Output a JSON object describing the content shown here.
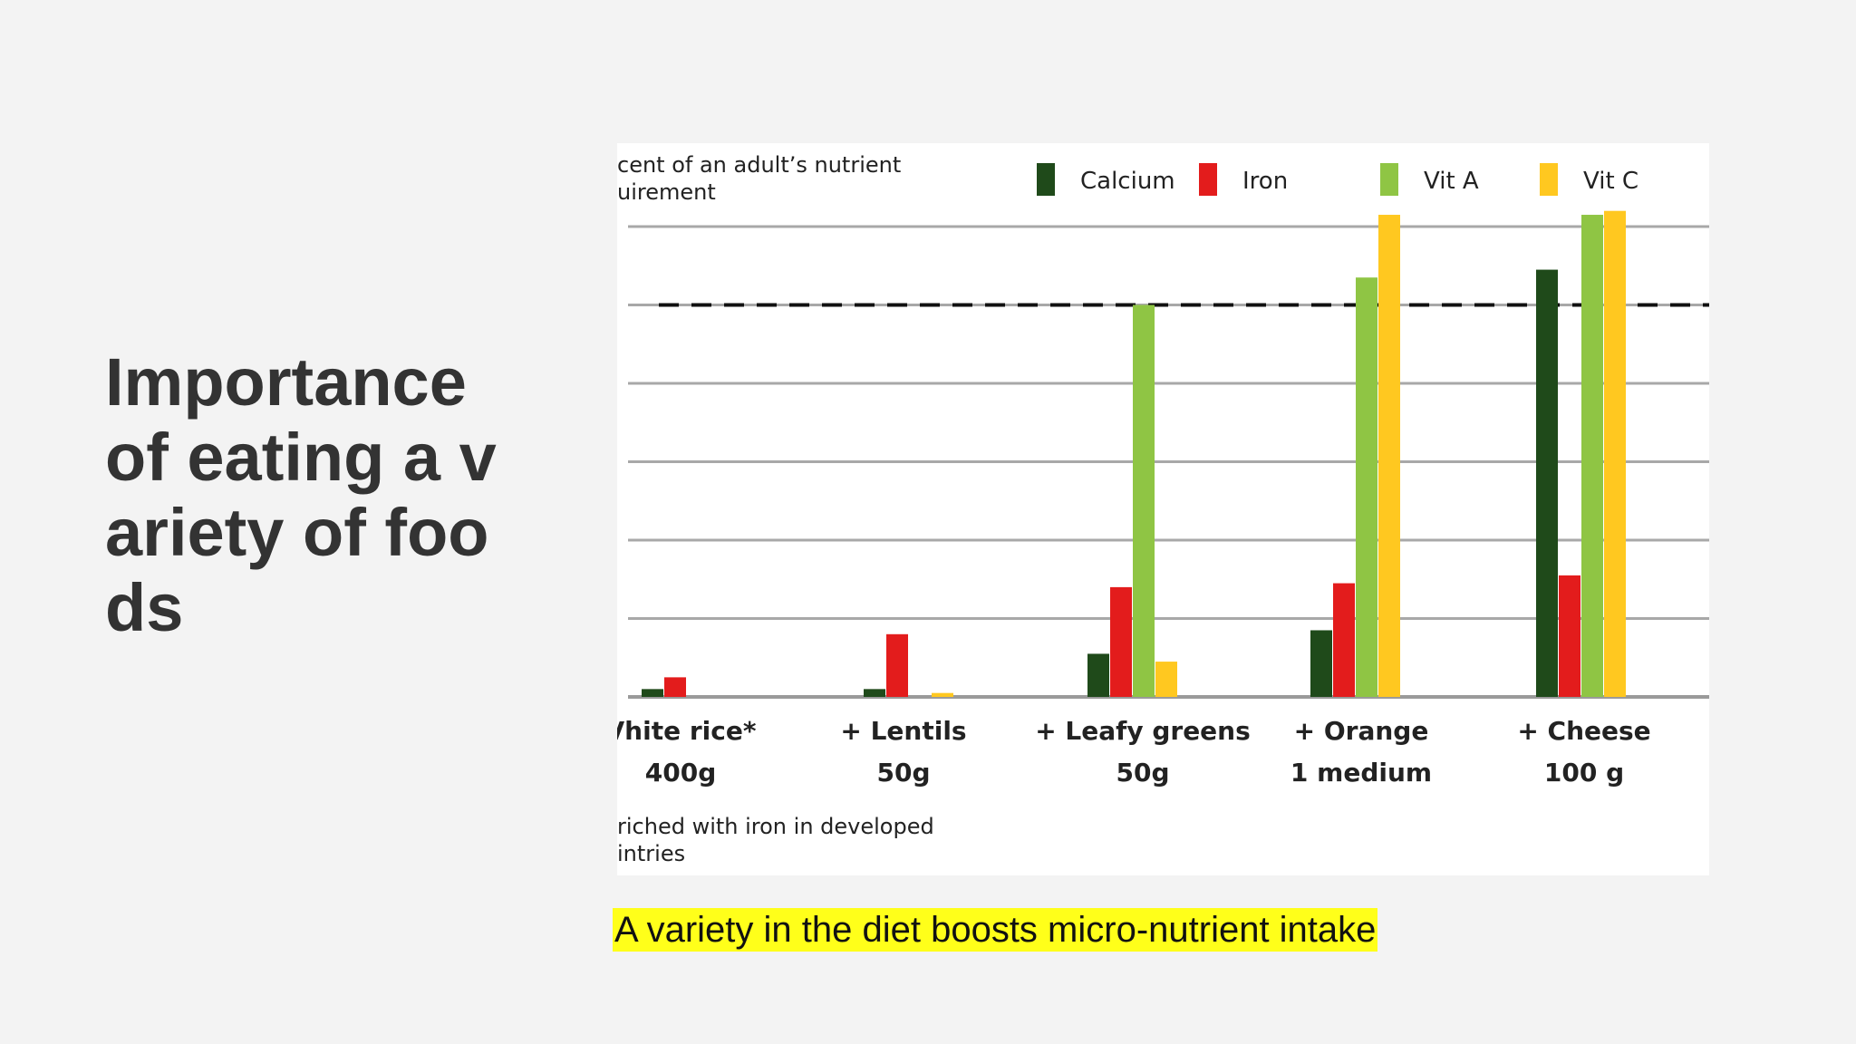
{
  "slide": {
    "title": "Importance of eating a variety of foods",
    "caption": "A variety in the diet boosts micro-nutrient intake"
  },
  "colors": {
    "background": "#f3f3f3",
    "calcium": "#1f4a1a",
    "iron": "#e31c1c",
    "vit_a": "#8fc544",
    "vit_c": "#ffc820",
    "caption_highlight": "#ffff1a"
  },
  "chart_data": {
    "type": "bar",
    "title": "",
    "ylabel": [
      "cent of an adult’s nutrient",
      "uirement"
    ],
    "note": [
      "riched with iron in developed",
      "intries"
    ],
    "ylim": [
      0,
      1.2
    ],
    "reference_line": 1.0,
    "grid": true,
    "legend_position": "top-right",
    "categories": [
      [
        "Vhite rice*",
        "400g"
      ],
      [
        "+ Lentils",
        "50g"
      ],
      [
        "+ Leafy greens",
        "50g"
      ],
      [
        "+ Orange",
        "1 medium"
      ],
      [
        "+ Cheese",
        "100 g"
      ]
    ],
    "series": [
      {
        "name": "Calcium",
        "color_key": "calcium",
        "values": [
          0.02,
          0.02,
          0.11,
          0.17,
          1.09
        ]
      },
      {
        "name": "Iron",
        "color_key": "iron",
        "values": [
          0.05,
          0.16,
          0.28,
          0.29,
          0.31
        ]
      },
      {
        "name": "Vit A",
        "color_key": "vit_a",
        "values": [
          0,
          0,
          1.0,
          1.07,
          1.23
        ]
      },
      {
        "name": "Vit C",
        "color_key": "vit_c",
        "values": [
          0,
          0.01,
          0.09,
          1.23,
          1.24
        ]
      }
    ]
  }
}
